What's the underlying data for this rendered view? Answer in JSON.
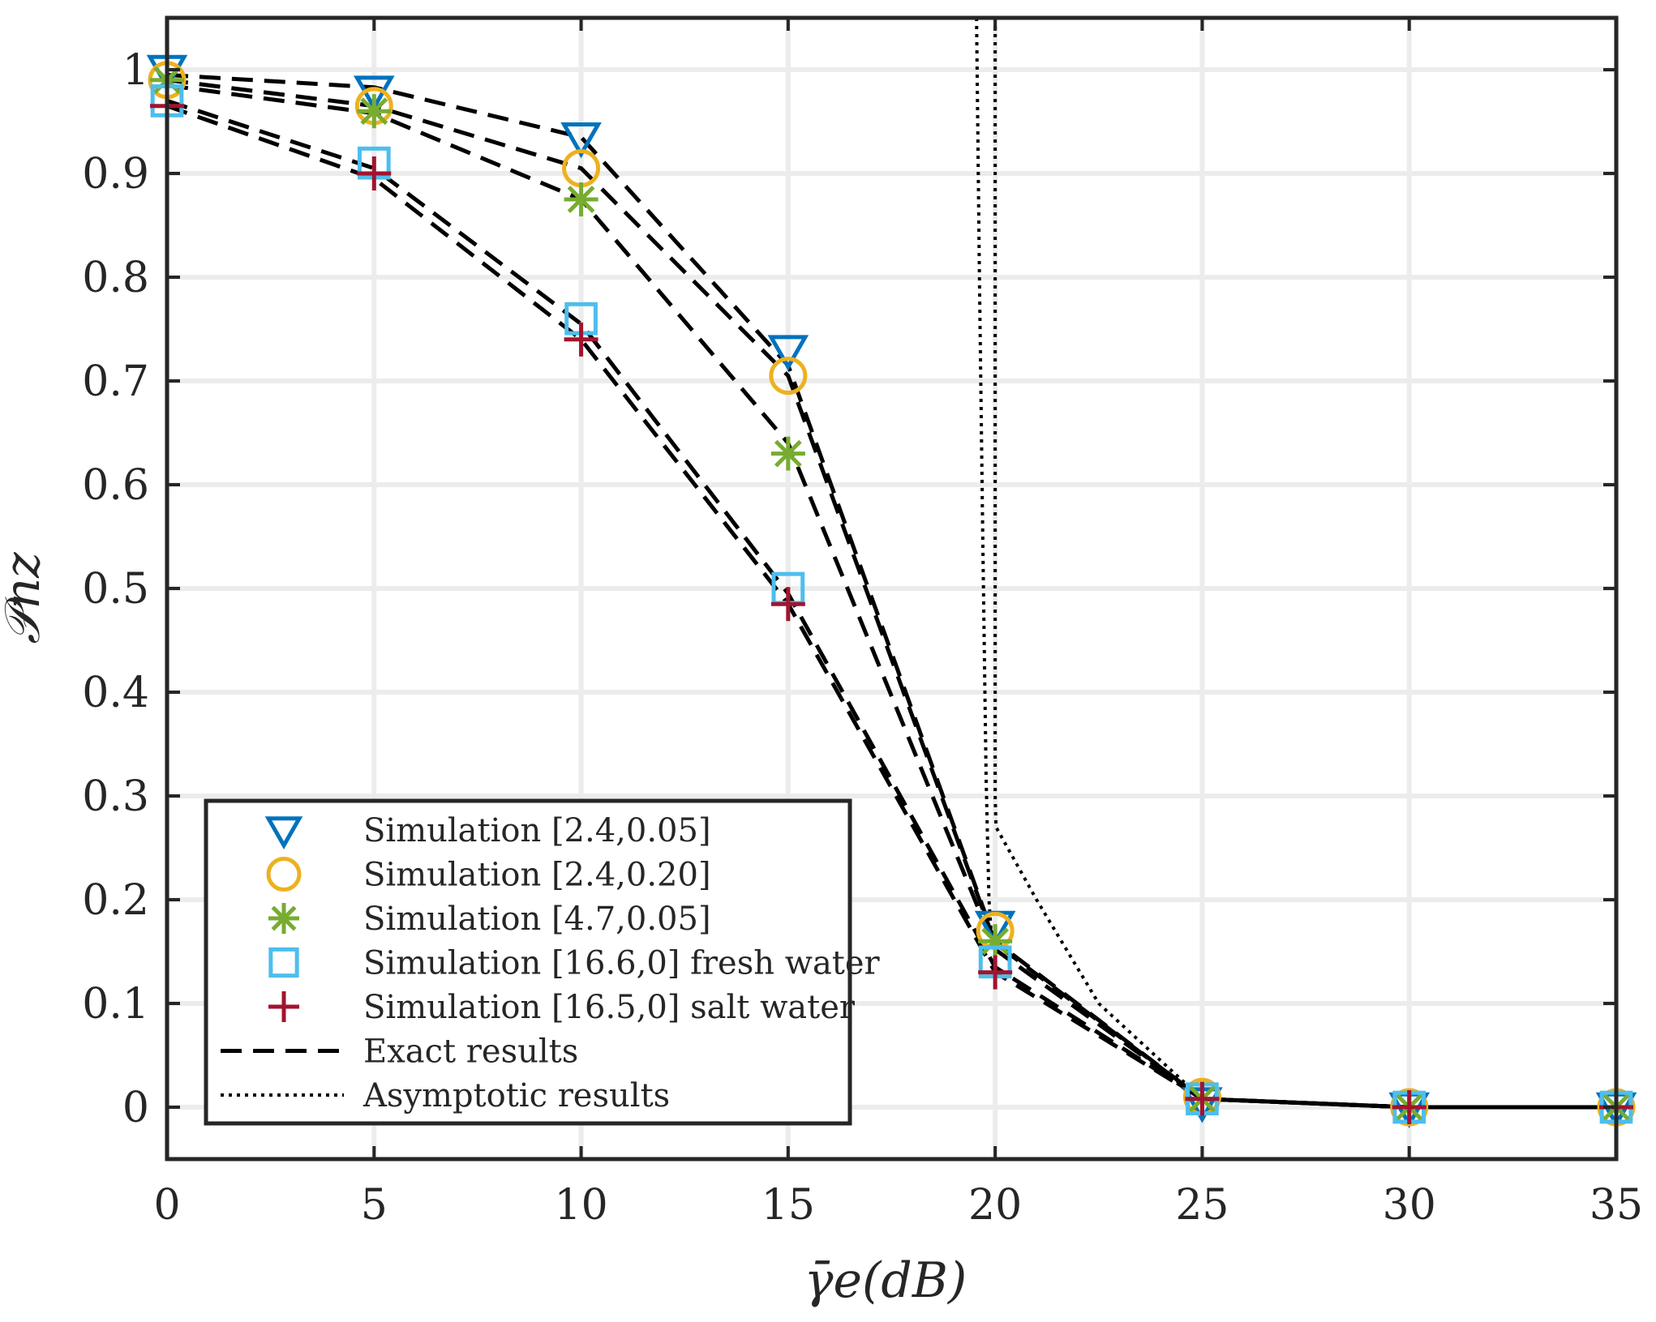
{
  "chart_data": {
    "type": "line",
    "title": "",
    "xlabel": "γ̄e(dB)",
    "ylabel": "𝒫nz",
    "xlim": [
      0,
      35
    ],
    "ylim": [
      -0.05,
      1.05
    ],
    "xticks": [
      0,
      5,
      10,
      15,
      20,
      25,
      30,
      35
    ],
    "yticks": [
      0,
      0.1,
      0.2,
      0.3,
      0.4,
      0.5,
      0.6,
      0.7,
      0.8,
      0.9,
      1
    ],
    "xtick_labels": [
      "0",
      "5",
      "10",
      "15",
      "20",
      "25",
      "30",
      "35"
    ],
    "ytick_labels": [
      "0",
      "0.1",
      "0.2",
      "0.3",
      "0.4",
      "0.5",
      "0.6",
      "0.7",
      "0.8",
      "0.9",
      "1"
    ],
    "grid": true,
    "legend_position": "bottom-left",
    "x": [
      0,
      5,
      10,
      15,
      20,
      25,
      30,
      35
    ],
    "series": [
      {
        "name": "Simulation [2.4,0.05]",
        "marker": "triangle-down",
        "color": "#0072BD",
        "values": [
          1.0,
          0.98,
          0.935,
          0.73,
          0.175,
          0.005,
          0.0,
          0.0
        ]
      },
      {
        "name": "Simulation [2.4,0.20]",
        "marker": "circle",
        "color": "#EDB120",
        "values": [
          0.99,
          0.965,
          0.905,
          0.705,
          0.17,
          0.01,
          0.0,
          0.0
        ]
      },
      {
        "name": "Simulation [4.7,0.05]",
        "marker": "asterisk",
        "color": "#77AC30",
        "values": [
          0.99,
          0.96,
          0.875,
          0.63,
          0.16,
          0.008,
          0.0,
          0.0
        ]
      },
      {
        "name": "Simulation [16.6,0] fresh water",
        "marker": "square",
        "color": "#4DBEEE",
        "values": [
          0.97,
          0.91,
          0.76,
          0.5,
          0.14,
          0.008,
          0.0,
          0.0
        ]
      },
      {
        "name": "Simulation [16.5,0] salt water",
        "marker": "plus",
        "color": "#A2142F",
        "values": [
          0.965,
          0.9,
          0.74,
          0.485,
          0.13,
          0.008,
          0.0,
          0.0
        ]
      }
    ],
    "exact_results": {
      "name": "Exact results",
      "style": "dashed",
      "curves": [
        [
          0.995,
          0.983,
          0.935,
          0.715,
          0.16,
          0.008,
          0.0,
          0.0
        ],
        [
          0.99,
          0.965,
          0.905,
          0.705,
          0.158,
          0.008,
          0.0,
          0.0
        ],
        [
          0.985,
          0.958,
          0.875,
          0.64,
          0.152,
          0.008,
          0.0,
          0.0
        ],
        [
          0.97,
          0.905,
          0.755,
          0.495,
          0.135,
          0.008,
          0.0,
          0.0
        ],
        [
          0.965,
          0.895,
          0.74,
          0.485,
          0.13,
          0.008,
          0.0,
          0.0
        ]
      ]
    },
    "asymptotic_results": {
      "name": "Asymptotic results",
      "style": "dotted",
      "curves": [
        {
          "x": [
            19.55,
            19.62,
            19.7,
            19.78,
            19.85,
            19.9
          ],
          "y": [
            1.05,
            0.8,
            0.55,
            0.32,
            0.2,
            0.17
          ]
        },
        {
          "x": [
            20.0,
            20.0,
            20.0,
            20.02,
            21.0,
            22.5,
            25.0
          ],
          "y": [
            1.05,
            0.6,
            0.3,
            0.27,
            0.2,
            0.1,
            0.008
          ]
        }
      ]
    },
    "legend": [
      {
        "label": "Simulation [2.4,0.05]",
        "marker": "triangle-down",
        "color": "#0072BD"
      },
      {
        "label": "Simulation [2.4,0.20]",
        "marker": "circle",
        "color": "#EDB120"
      },
      {
        "label": "Simulation [4.7,0.05]",
        "marker": "asterisk",
        "color": "#77AC30"
      },
      {
        "label": "Simulation [16.6,0] fresh water",
        "marker": "square",
        "color": "#4DBEEE"
      },
      {
        "label": "Simulation [16.5,0] salt water",
        "marker": "plus",
        "color": "#A2142F"
      },
      {
        "label": "Exact results",
        "line": "dashed",
        "color": "#000000"
      },
      {
        "label": "Asymptotic results",
        "line": "dotted",
        "color": "#000000"
      }
    ]
  }
}
